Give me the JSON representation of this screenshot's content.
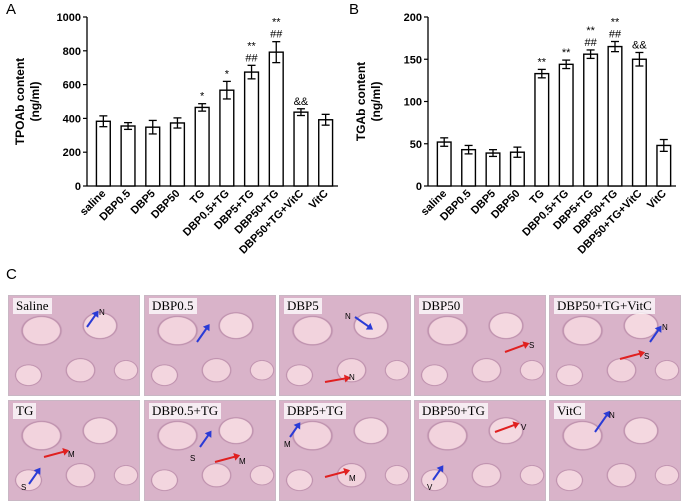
{
  "panels": {
    "a_letter": "A",
    "b_letter": "B",
    "c_letter": "C"
  },
  "chart_data": [
    {
      "type": "bar",
      "ylabel": "TPOAb content\n(ng/ml)",
      "ylim": [
        0,
        1000
      ],
      "yticks": [
        0,
        200,
        400,
        600,
        800,
        1000
      ],
      "categories": [
        "saline",
        "DBP0.5",
        "DBP5",
        "DBP50",
        "TG",
        "DBP0.5+TG",
        "DBP5+TG",
        "DBP50+TG",
        "DBP50+TG+VitC",
        "VitC"
      ],
      "values": [
        383,
        355,
        348,
        373,
        465,
        567,
        674,
        792,
        437,
        392
      ],
      "errors": [
        32,
        20,
        40,
        30,
        22,
        52,
        40,
        62,
        20,
        32
      ],
      "annotations": [
        "",
        "",
        "",
        "",
        "*",
        "*",
        "**|##",
        "**|##",
        "&&",
        ""
      ]
    },
    {
      "type": "bar",
      "ylabel": "TGAb content\n(ng/ml)",
      "ylim": [
        0,
        200
      ],
      "yticks": [
        0,
        50,
        100,
        150,
        200
      ],
      "categories": [
        "saline",
        "DBP0.5",
        "DBP5",
        "DBP50",
        "TG",
        "DBP0.5+TG",
        "DBP5+TG",
        "DBP50+TG",
        "DBP50+TG+VitC",
        "VitC"
      ],
      "values": [
        52,
        43,
        39,
        40,
        133,
        144,
        156,
        165,
        150,
        48
      ],
      "errors": [
        5,
        5,
        4,
        6,
        5,
        5,
        5,
        6,
        8,
        7
      ],
      "annotations": [
        "",
        "",
        "",
        "",
        "**",
        "**",
        "**|##",
        "**|##",
        "&&",
        ""
      ]
    }
  ],
  "histology": {
    "row1": [
      "Saline",
      "DBP0.5",
      "DBP5",
      "DBP50",
      "DBP50+TG+VitC"
    ],
    "row2": [
      "TG",
      "DBP0.5+TG",
      "DBP5+TG",
      "DBP50+TG",
      "VitC"
    ],
    "marks": {
      "n": "N",
      "s": "S",
      "m": "M",
      "v": "V"
    }
  }
}
